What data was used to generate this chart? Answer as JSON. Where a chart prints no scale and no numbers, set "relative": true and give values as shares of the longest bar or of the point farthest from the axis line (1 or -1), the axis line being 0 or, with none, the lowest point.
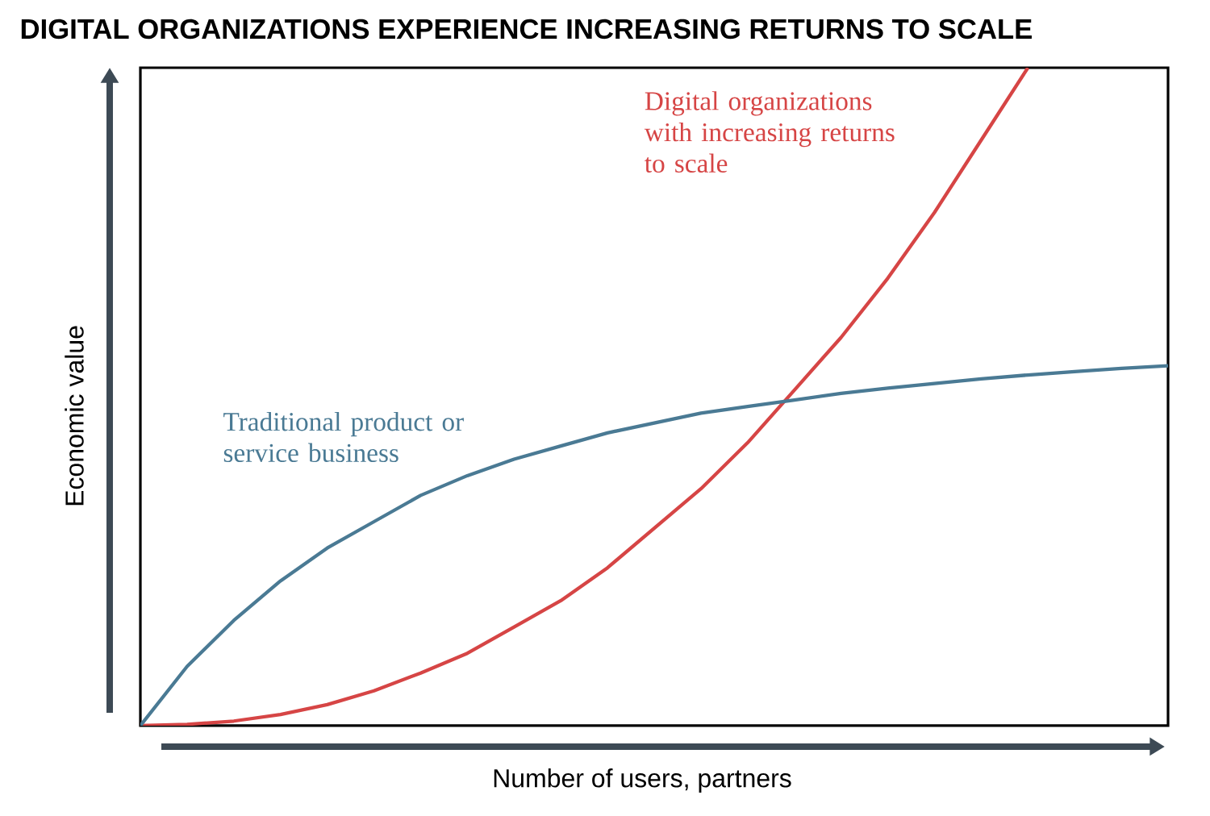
{
  "chart_data": {
    "type": "line",
    "title": "DIGITAL ORGANIZATIONS EXPERIENCE INCREASING RETURNS TO SCALE",
    "xlabel": "Number of users, partners",
    "ylabel": "Economic value",
    "relative": true,
    "categories": [
      null,
      null,
      null,
      null,
      null,
      null,
      null,
      null,
      null,
      null,
      null,
      null,
      null,
      null,
      null,
      null,
      null,
      null,
      null,
      null,
      null,
      null,
      null
    ],
    "series": [
      {
        "name": "Digital organizations with increasing returns to scale",
        "color": "#d64545",
        "values": [
          0,
          0.002,
          0.007,
          0.017,
          0.032,
          0.053,
          0.08,
          0.11,
          0.15,
          0.19,
          0.24,
          0.3,
          0.36,
          0.43,
          0.51,
          0.59,
          0.68,
          0.78,
          0.89,
          1.0,
          null,
          null,
          null
        ]
      },
      {
        "name": "Traditional product or service business",
        "color": "#4a7a94",
        "values": [
          0,
          0.09,
          0.16,
          0.22,
          0.27,
          0.31,
          0.35,
          0.38,
          0.405,
          0.425,
          0.445,
          0.46,
          0.475,
          0.485,
          0.495,
          0.505,
          0.513,
          0.52,
          0.527,
          0.533,
          0.538,
          0.543,
          0.547
        ]
      }
    ],
    "marker": "none",
    "line_style": "solid"
  }
}
